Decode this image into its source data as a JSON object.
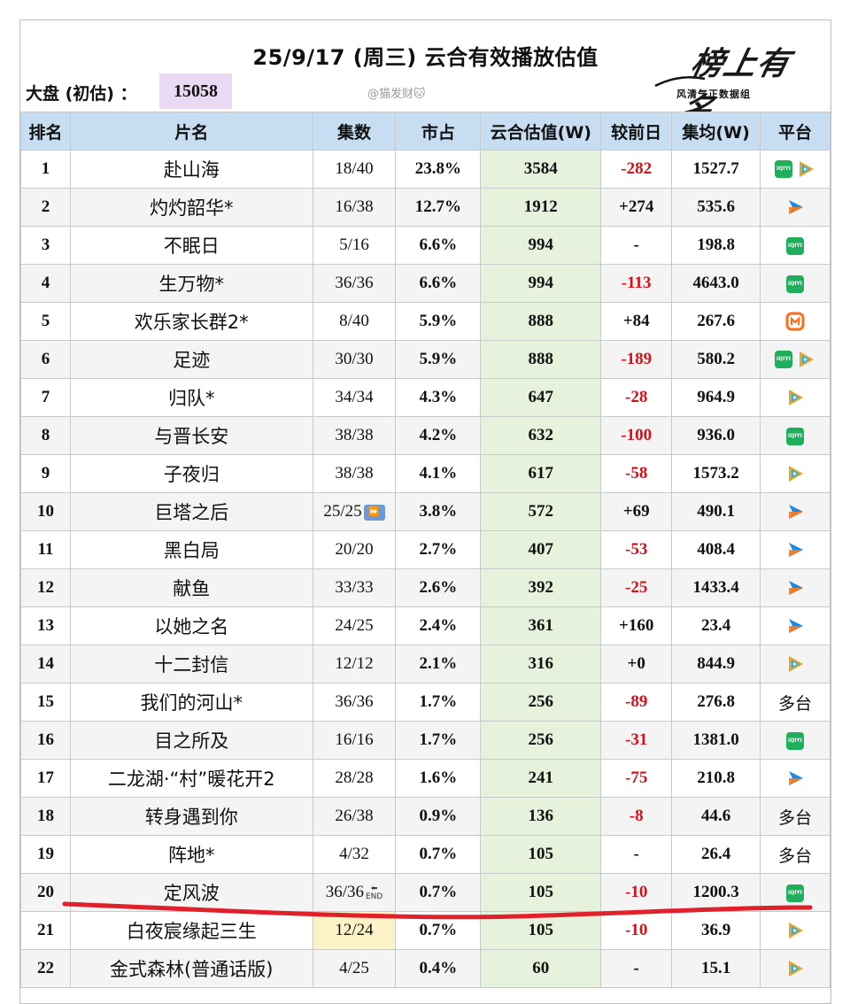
{
  "header": {
    "title": "25/9/17 (周三) 云合有效播放估值",
    "dapan_label": "大盘 (初估) ：",
    "dapan_value": "15058",
    "watermark": "@猫发财🐱",
    "logo_script": "榜上有名",
    "logo_subtitle": "风清气正数据组"
  },
  "columns": [
    "排名",
    "片名",
    "集数",
    "市占",
    "云合估值(W)",
    "较前日",
    "集均(W)",
    "平台"
  ],
  "rows": [
    {
      "rank": "1",
      "name": "赴山海",
      "ep": "18/40",
      "share": "23.8%",
      "val": "3584",
      "delta": "-282",
      "avg": "1527.7",
      "platform": [
        "iqiyi",
        "tencent"
      ]
    },
    {
      "rank": "2",
      "name": "灼灼韶华*",
      "ep": "16/38",
      "share": "12.7%",
      "val": "1912",
      "delta": "+274",
      "avg": "535.6",
      "platform": [
        "youku"
      ]
    },
    {
      "rank": "3",
      "name": "不眠日",
      "ep": "5/16",
      "share": "6.6%",
      "val": "994",
      "delta": "-",
      "avg": "198.8",
      "platform": [
        "iqiyi"
      ]
    },
    {
      "rank": "4",
      "name": "生万物*",
      "ep": "36/36",
      "share": "6.6%",
      "val": "994",
      "delta": "-113",
      "avg": "4643.0",
      "platform": [
        "iqiyi"
      ]
    },
    {
      "rank": "5",
      "name": "欢乐家长群2*",
      "ep": "8/40",
      "share": "5.9%",
      "val": "888",
      "delta": "+84",
      "avg": "267.6",
      "platform": [
        "mango"
      ]
    },
    {
      "rank": "6",
      "name": "足迹",
      "ep": "30/30",
      "share": "5.9%",
      "val": "888",
      "delta": "-189",
      "avg": "580.2",
      "platform": [
        "iqiyi",
        "tencent"
      ]
    },
    {
      "rank": "7",
      "name": "归队*",
      "ep": "34/34",
      "share": "4.3%",
      "val": "647",
      "delta": "-28",
      "avg": "964.9",
      "platform": [
        "tencent"
      ]
    },
    {
      "rank": "8",
      "name": "与晋长安",
      "ep": "38/38",
      "share": "4.2%",
      "val": "632",
      "delta": "-100",
      "avg": "936.0",
      "platform": [
        "iqiyi"
      ]
    },
    {
      "rank": "9",
      "name": "子夜归",
      "ep": "38/38",
      "share": "4.1%",
      "val": "617",
      "delta": "-58",
      "avg": "1573.2",
      "platform": [
        "tencent"
      ]
    },
    {
      "rank": "10",
      "name": "巨塔之后",
      "ep": "25/25",
      "ep_icon": "ff",
      "share": "3.8%",
      "val": "572",
      "delta": "+69",
      "avg": "490.1",
      "platform": [
        "youku"
      ]
    },
    {
      "rank": "11",
      "name": "黑白局",
      "ep": "20/20",
      "share": "2.7%",
      "val": "407",
      "delta": "-53",
      "avg": "408.4",
      "platform": [
        "youku"
      ]
    },
    {
      "rank": "12",
      "name": "献鱼",
      "ep": "33/33",
      "share": "2.6%",
      "val": "392",
      "delta": "-25",
      "avg": "1433.4",
      "platform": [
        "youku"
      ]
    },
    {
      "rank": "13",
      "name": "以她之名",
      "ep": "24/25",
      "share": "2.4%",
      "val": "361",
      "delta": "+160",
      "avg": "23.4",
      "platform": [
        "youku"
      ]
    },
    {
      "rank": "14",
      "name": "十二封信",
      "ep": "12/12",
      "share": "2.1%",
      "val": "316",
      "delta": "+0",
      "avg": "844.9",
      "platform": [
        "tencent"
      ]
    },
    {
      "rank": "15",
      "name": "我们的河山*",
      "ep": "36/36",
      "share": "1.7%",
      "val": "256",
      "delta": "-89",
      "avg": "276.8",
      "platform_text": "多台"
    },
    {
      "rank": "16",
      "name": "目之所及",
      "ep": "16/16",
      "share": "1.7%",
      "val": "256",
      "delta": "-31",
      "avg": "1381.0",
      "platform": [
        "iqiyi"
      ]
    },
    {
      "rank": "17",
      "name": "二龙湖·“村”暖花开2",
      "ep": "28/28",
      "share": "1.6%",
      "val": "241",
      "delta": "-75",
      "avg": "210.8",
      "platform": [
        "youku"
      ]
    },
    {
      "rank": "18",
      "name": "转身遇到你",
      "ep": "26/38",
      "share": "0.9%",
      "val": "136",
      "delta": "-8",
      "avg": "44.6",
      "platform_text": "多台"
    },
    {
      "rank": "19",
      "name": "阵地*",
      "ep": "4/32",
      "share": "0.7%",
      "val": "105",
      "delta": "-",
      "avg": "26.4",
      "platform_text": "多台"
    },
    {
      "rank": "20",
      "name": "定风波",
      "ep": "36/36",
      "ep_icon": "end",
      "share": "0.7%",
      "val": "105",
      "delta": "-10",
      "avg": "1200.3",
      "platform": [
        "iqiyi"
      ]
    },
    {
      "rank": "21",
      "name": "白夜宸缘起三生",
      "ep": "12/24",
      "ep_highlight": true,
      "share": "0.7%",
      "val": "105",
      "delta": "-10",
      "avg": "36.9",
      "platform": [
        "tencent"
      ]
    },
    {
      "rank": "22",
      "name": "金式森林(普通话版)",
      "ep": "4/25",
      "share": "0.4%",
      "val": "60",
      "delta": "-",
      "avg": "15.1",
      "platform": [
        "tencent"
      ]
    }
  ],
  "icons": {
    "iqiyi_text": "iQIYI",
    "ff_glyph": "⏩",
    "end_text": "END",
    "end_arrow": "⬅"
  },
  "colors": {
    "header_bg": "#c7ddf2",
    "value_col_bg": "#e6f2dc",
    "negative": "#d4121a",
    "dapan_bg": "#ead9f2",
    "annotation_line": "#e0202a"
  }
}
